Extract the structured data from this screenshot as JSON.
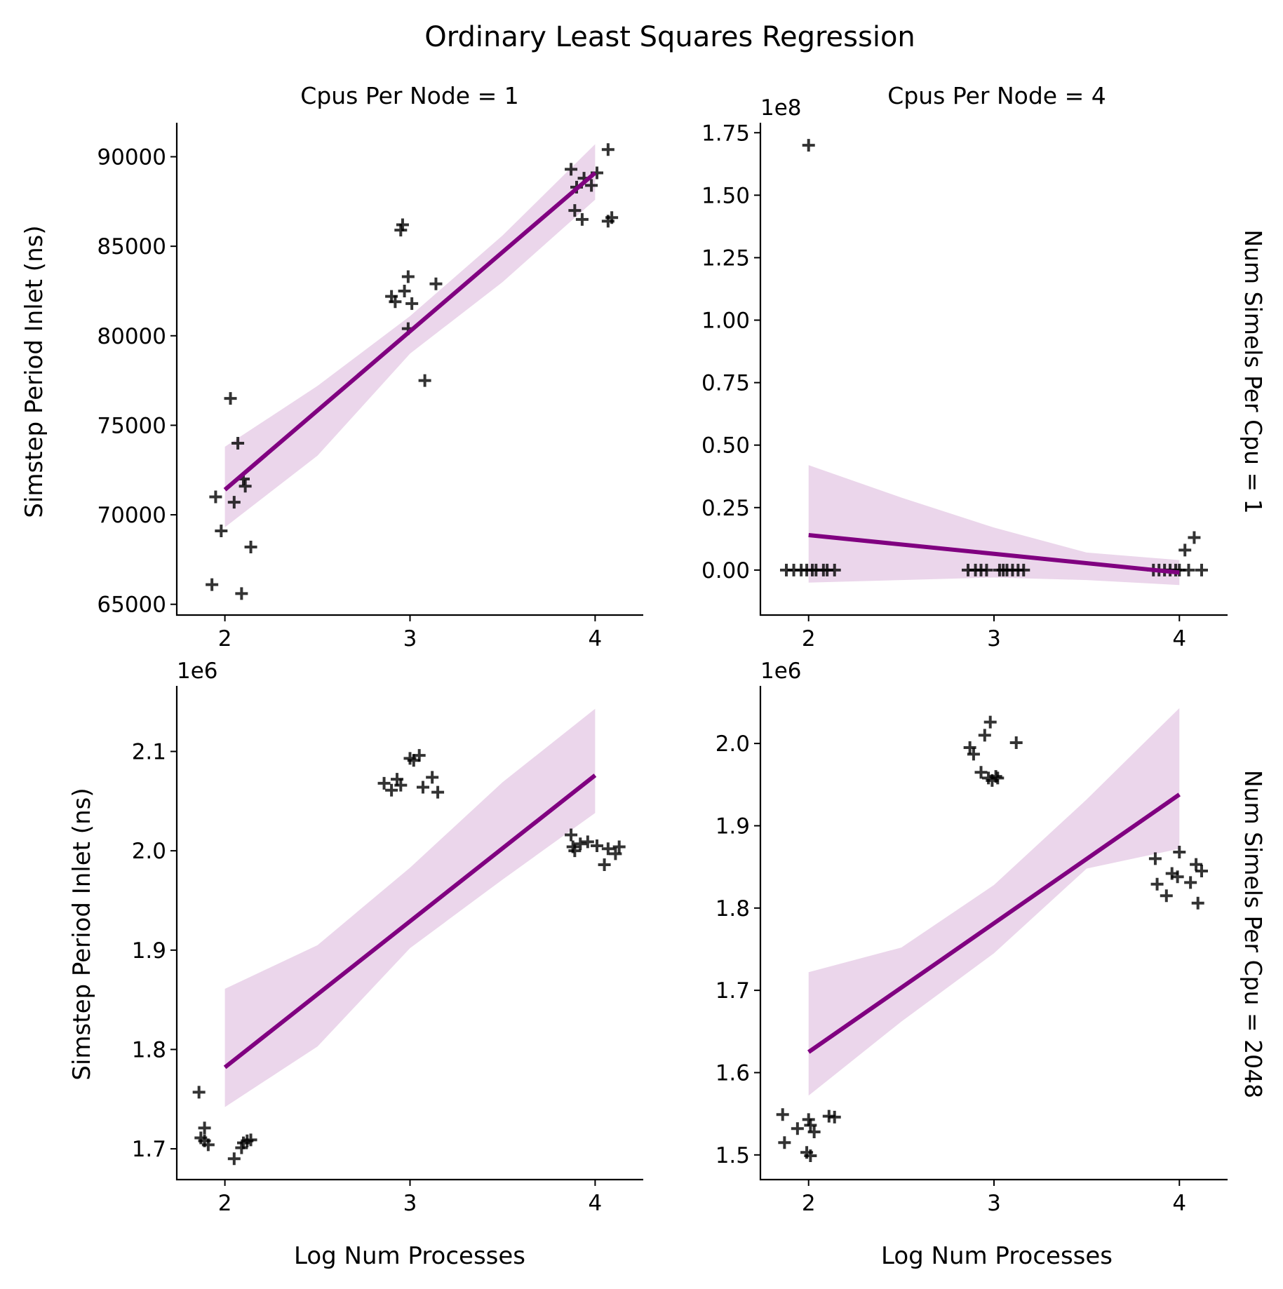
{
  "title": "Ordinary Least Squares Regression",
  "col_titles": [
    "Cpus Per Node = 1",
    "Cpus Per Node = 4"
  ],
  "row_titles": [
    "Num Simels Per Cpu = 1",
    "Num Simels Per Cpu = 2048"
  ],
  "xlabel": "Log Num Processes",
  "ylabel": "Simstep Period Inlet (ns)",
  "colors": {
    "line": "#800080",
    "band": "#800080",
    "band_opacity": 0.16,
    "marker": "#000000"
  },
  "marker_icon": "plus-marker",
  "chart_data": [
    {
      "type": "scatter",
      "panel": "Cpus Per Node = 1 / Num Simels Per Cpu = 1",
      "xlim": [
        1.74,
        4.26
      ],
      "ylim": [
        64400,
        91900
      ],
      "x_ticks": [
        2,
        3,
        4
      ],
      "x_tick_labels": [
        "2",
        "3",
        "4"
      ],
      "y_ticks": [
        65000,
        70000,
        75000,
        80000,
        85000,
        90000
      ],
      "y_tick_labels": [
        "65000",
        "70000",
        "75000",
        "80000",
        "85000",
        "90000"
      ],
      "y_offset_label": "",
      "points": [
        [
          1.93,
          66100
        ],
        [
          1.95,
          71000
        ],
        [
          1.98,
          69100
        ],
        [
          2.03,
          76500
        ],
        [
          2.05,
          70700
        ],
        [
          2.07,
          74000
        ],
        [
          2.09,
          65600
        ],
        [
          2.1,
          72000
        ],
        [
          2.11,
          71600
        ],
        [
          2.14,
          68200
        ],
        [
          2.9,
          82200
        ],
        [
          2.92,
          81900
        ],
        [
          2.95,
          85900
        ],
        [
          2.96,
          86200
        ],
        [
          2.97,
          82500
        ],
        [
          2.99,
          83300
        ],
        [
          2.99,
          80400
        ],
        [
          3.01,
          81800
        ],
        [
          3.08,
          77500
        ],
        [
          3.14,
          82900
        ],
        [
          3.87,
          89300
        ],
        [
          3.89,
          87000
        ],
        [
          3.9,
          88300
        ],
        [
          3.93,
          86500
        ],
        [
          3.94,
          88800
        ],
        [
          3.98,
          88400
        ],
        [
          4.01,
          89100
        ],
        [
          4.07,
          90400
        ],
        [
          4.07,
          86400
        ],
        [
          4.09,
          86600
        ]
      ],
      "regression": {
        "x": [
          2,
          4
        ],
        "y": [
          71400,
          89100
        ]
      },
      "ci_band": {
        "x": [
          2,
          2.5,
          3,
          3.5,
          4
        ],
        "upper": [
          73800,
          77200,
          81100,
          85600,
          90700
        ],
        "lower": [
          69300,
          73300,
          79000,
          83000,
          87600
        ]
      }
    },
    {
      "type": "scatter",
      "panel": "Cpus Per Node = 4 / Num Simels Per Cpu = 1",
      "xlim": [
        1.74,
        4.26
      ],
      "ylim": [
        -0.18,
        1.79
      ],
      "y_units": "1e8",
      "x_ticks": [
        2,
        3,
        4
      ],
      "x_tick_labels": [
        "2",
        "3",
        "4"
      ],
      "y_ticks": [
        0,
        0.25,
        0.5,
        0.75,
        1.0,
        1.25,
        1.5,
        1.75
      ],
      "y_tick_labels": [
        "0.00",
        "0.25",
        "0.50",
        "0.75",
        "1.00",
        "1.25",
        "1.50",
        "1.75"
      ],
      "y_offset_label": "1e8",
      "points": [
        [
          1.88,
          0.0
        ],
        [
          1.92,
          0.0
        ],
        [
          1.96,
          0.0
        ],
        [
          1.99,
          0.0
        ],
        [
          2.0,
          1.7
        ],
        [
          2.02,
          0.0
        ],
        [
          2.04,
          0.0
        ],
        [
          2.08,
          0.0
        ],
        [
          2.1,
          0.0
        ],
        [
          2.14,
          0.0
        ],
        [
          2.86,
          0.0
        ],
        [
          2.9,
          0.0
        ],
        [
          2.93,
          0.0
        ],
        [
          2.96,
          0.0
        ],
        [
          3.03,
          0.0
        ],
        [
          3.05,
          0.0
        ],
        [
          3.07,
          0.0
        ],
        [
          3.1,
          0.0
        ],
        [
          3.13,
          0.0
        ],
        [
          3.16,
          0.0
        ],
        [
          3.86,
          0.0
        ],
        [
          3.89,
          0.0
        ],
        [
          3.92,
          0.0
        ],
        [
          3.95,
          0.0
        ],
        [
          3.98,
          0.0
        ],
        [
          4.0,
          0.0
        ],
        [
          4.03,
          0.08
        ],
        [
          4.05,
          0.0
        ],
        [
          4.08,
          0.13
        ],
        [
          4.12,
          0.0
        ]
      ],
      "regression": {
        "x": [
          2,
          4
        ],
        "y": [
          0.14,
          -0.01
        ]
      },
      "ci_band": {
        "x": [
          2,
          2.5,
          3,
          3.5,
          4
        ],
        "upper": [
          0.42,
          0.29,
          0.17,
          0.07,
          0.04
        ],
        "lower": [
          -0.05,
          -0.04,
          -0.03,
          -0.04,
          -0.06
        ]
      }
    },
    {
      "type": "scatter",
      "panel": "Cpus Per Node = 1 / Num Simels Per Cpu = 2048",
      "xlim": [
        1.74,
        4.26
      ],
      "ylim": [
        1.669,
        2.166
      ],
      "y_units": "1e6",
      "x_ticks": [
        2,
        3,
        4
      ],
      "x_tick_labels": [
        "2",
        "3",
        "4"
      ],
      "y_ticks": [
        1.7,
        1.8,
        1.9,
        2.0,
        2.1
      ],
      "y_tick_labels": [
        "1.7",
        "1.8",
        "1.9",
        "2.0",
        "2.1"
      ],
      "y_offset_label": "1e6",
      "points": [
        [
          1.86,
          1.757
        ],
        [
          1.87,
          1.711
        ],
        [
          1.89,
          1.708
        ],
        [
          1.89,
          1.721
        ],
        [
          1.91,
          1.704
        ],
        [
          2.05,
          1.69
        ],
        [
          2.09,
          1.701
        ],
        [
          2.1,
          1.706
        ],
        [
          2.12,
          1.708
        ],
        [
          2.14,
          1.709
        ],
        [
          2.86,
          2.068
        ],
        [
          2.9,
          2.061
        ],
        [
          2.93,
          2.072
        ],
        [
          2.95,
          2.066
        ],
        [
          3.0,
          2.093
        ],
        [
          3.02,
          2.091
        ],
        [
          3.05,
          2.096
        ],
        [
          3.07,
          2.064
        ],
        [
          3.12,
          2.074
        ],
        [
          3.15,
          2.059
        ],
        [
          3.87,
          2.016
        ],
        [
          3.88,
          2.004
        ],
        [
          3.89,
          2.0
        ],
        [
          3.92,
          2.007
        ],
        [
          3.96,
          2.009
        ],
        [
          4.01,
          2.005
        ],
        [
          4.05,
          1.986
        ],
        [
          4.07,
          2.002
        ],
        [
          4.11,
          1.997
        ],
        [
          4.13,
          2.004
        ]
      ],
      "regression": {
        "x": [
          2,
          4
        ],
        "y": [
          1.782,
          2.076
        ]
      },
      "ci_band": {
        "x": [
          2,
          2.5,
          3,
          3.5,
          4
        ],
        "upper": [
          1.861,
          1.905,
          1.983,
          2.069,
          2.143
        ],
        "lower": [
          1.742,
          1.803,
          1.902,
          1.971,
          2.038
        ]
      }
    },
    {
      "type": "scatter",
      "panel": "Cpus Per Node = 4 / Num Simels Per Cpu = 2048",
      "xlim": [
        1.74,
        4.26
      ],
      "ylim": [
        1.47,
        2.07
      ],
      "y_units": "1e6",
      "x_ticks": [
        2,
        3,
        4
      ],
      "x_tick_labels": [
        "2",
        "3",
        "4"
      ],
      "y_ticks": [
        1.5,
        1.6,
        1.7,
        1.8,
        1.9,
        2.0
      ],
      "y_tick_labels": [
        "1.5",
        "1.6",
        "1.7",
        "1.8",
        "1.9",
        "2.0"
      ],
      "y_offset_label": "1e6",
      "points": [
        [
          1.86,
          1.549
        ],
        [
          1.87,
          1.515
        ],
        [
          1.94,
          1.532
        ],
        [
          1.99,
          1.503
        ],
        [
          2.0,
          1.543
        ],
        [
          2.01,
          1.536
        ],
        [
          2.01,
          1.499
        ],
        [
          2.03,
          1.528
        ],
        [
          2.11,
          1.547
        ],
        [
          2.14,
          1.546
        ],
        [
          2.87,
          1.995
        ],
        [
          2.89,
          1.987
        ],
        [
          2.93,
          1.965
        ],
        [
          2.95,
          2.01
        ],
        [
          2.97,
          1.958
        ],
        [
          2.98,
          2.026
        ],
        [
          2.99,
          1.955
        ],
        [
          3.01,
          1.96
        ],
        [
          3.02,
          1.958
        ],
        [
          3.12,
          2.001
        ],
        [
          3.87,
          1.86
        ],
        [
          3.88,
          1.829
        ],
        [
          3.93,
          1.815
        ],
        [
          3.96,
          1.842
        ],
        [
          3.99,
          1.838
        ],
        [
          4.0,
          1.868
        ],
        [
          4.06,
          1.831
        ],
        [
          4.09,
          1.853
        ],
        [
          4.1,
          1.806
        ],
        [
          4.12,
          1.845
        ]
      ],
      "regression": {
        "x": [
          2,
          4
        ],
        "y": [
          1.625,
          1.938
        ]
      },
      "ci_band": {
        "x": [
          2,
          2.5,
          3,
          3.5,
          4
        ],
        "upper": [
          1.722,
          1.752,
          1.828,
          1.932,
          2.043
        ],
        "lower": [
          1.572,
          1.662,
          1.745,
          1.848,
          1.872
        ]
      }
    }
  ]
}
